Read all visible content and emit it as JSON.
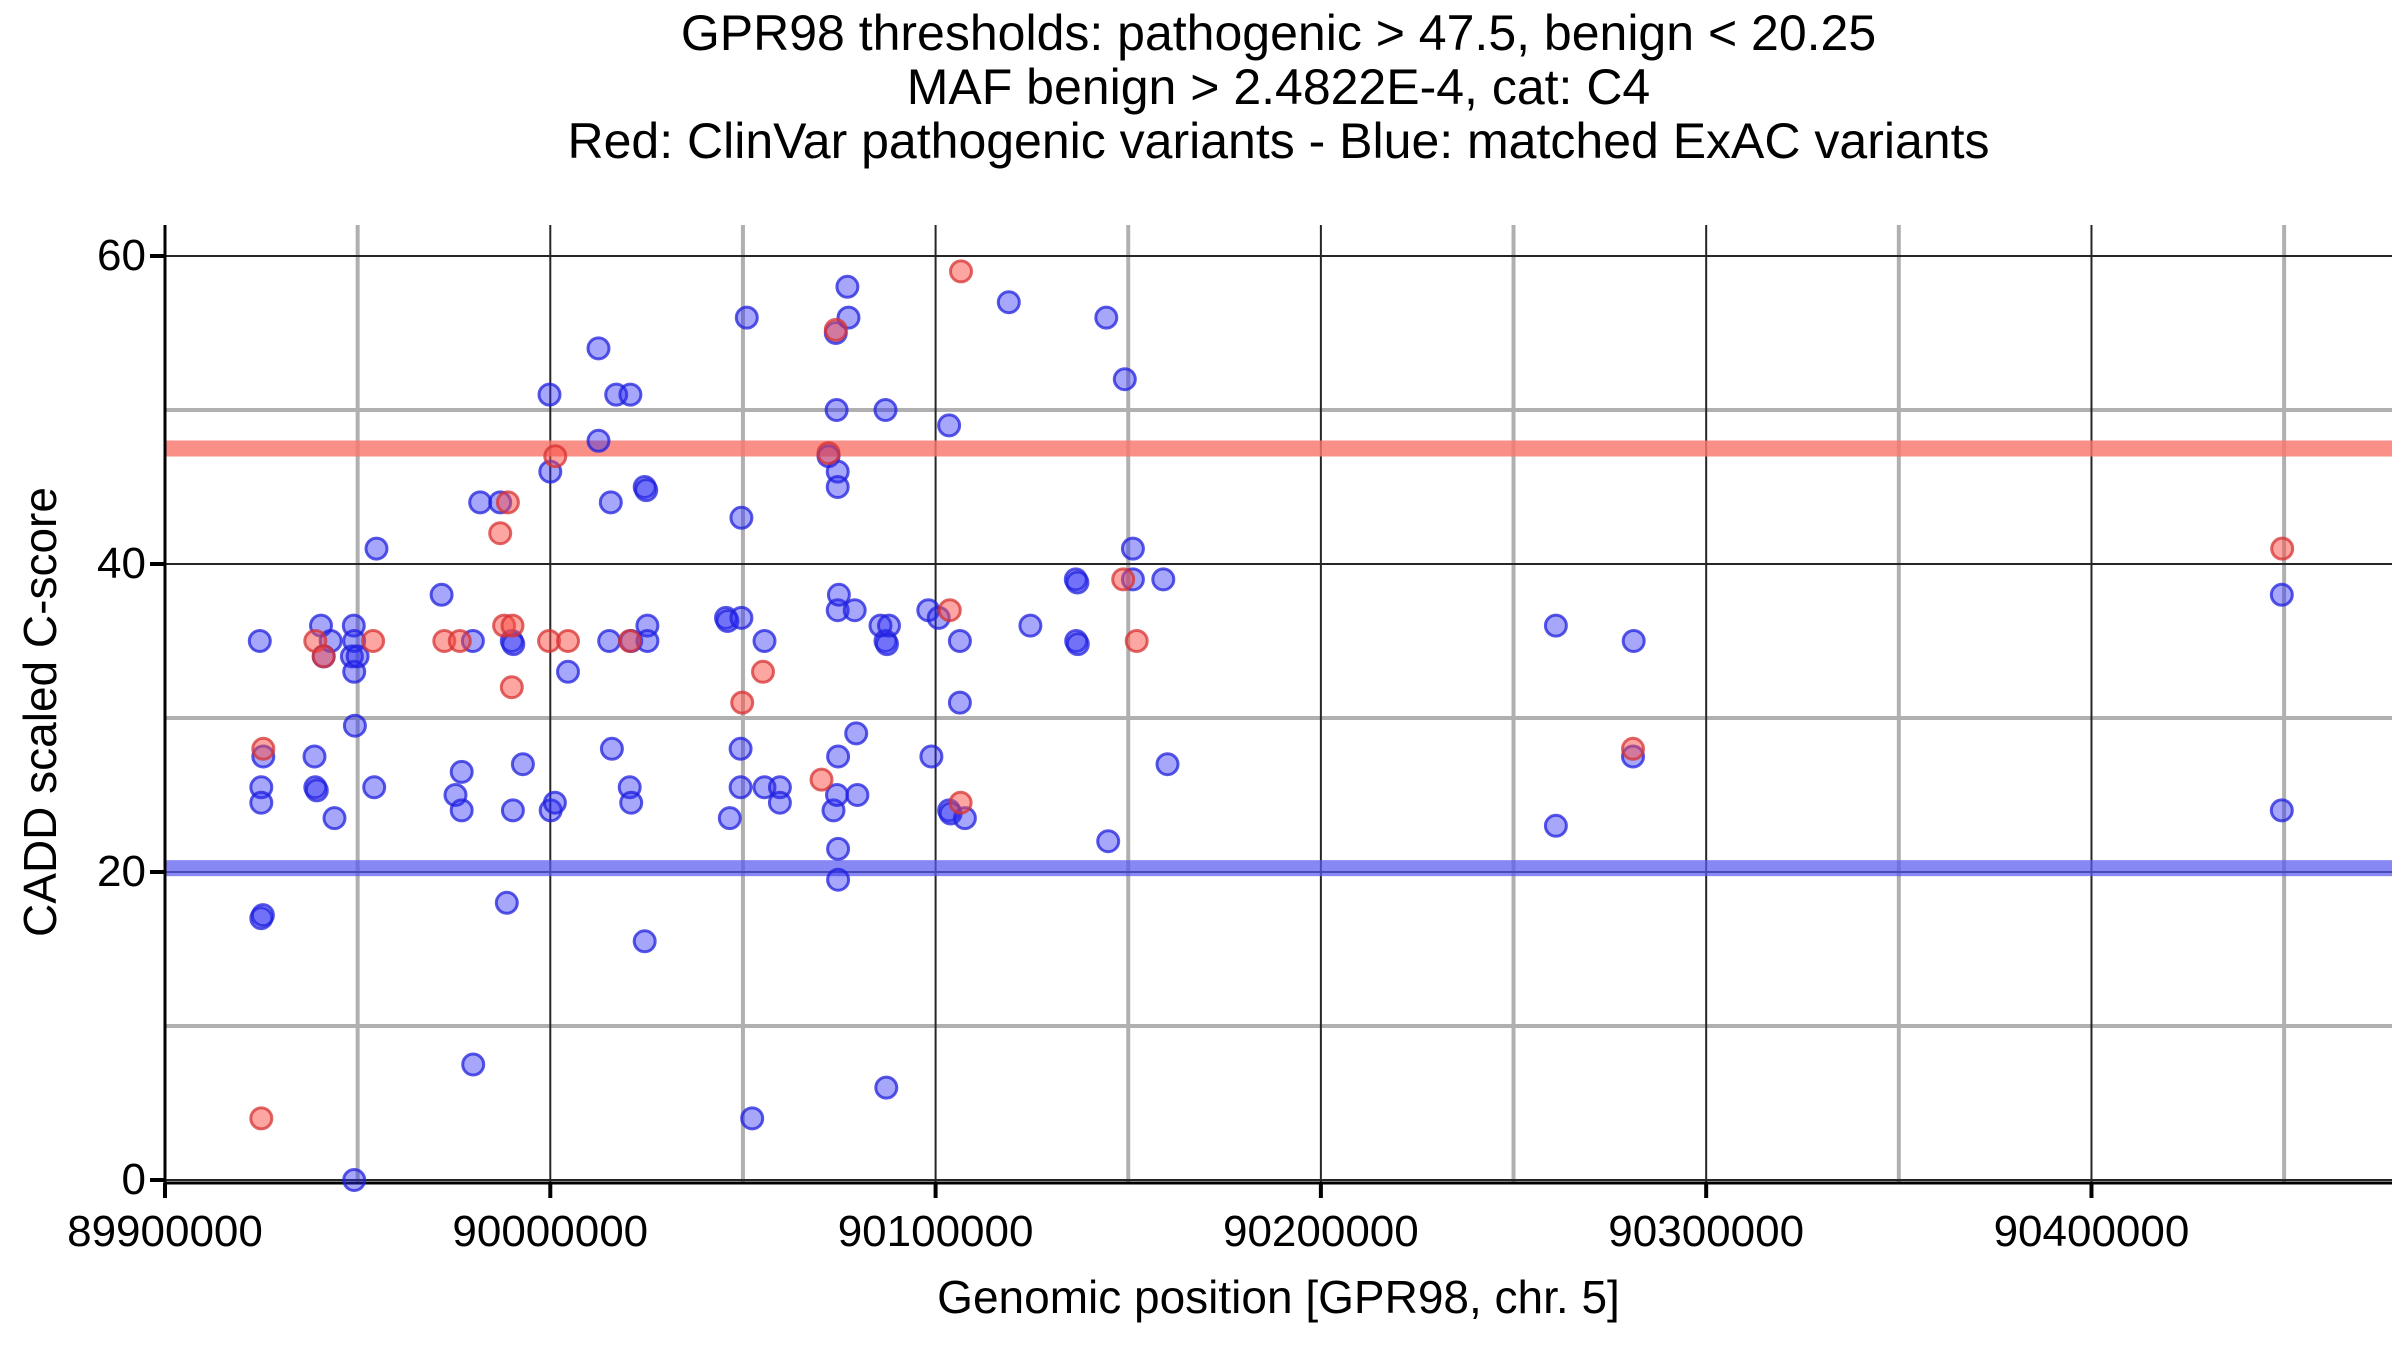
{
  "chart_data": {
    "type": "scatter",
    "title_lines": [
      "GPR98 thresholds: pathogenic > 47.5, benign < 20.25",
      "MAF benign > 2.4822E-4, cat: C4",
      "Red: ClinVar pathogenic variants - Blue: matched ExAC variants"
    ],
    "xlabel": "Genomic position [GPR98, chr. 5]",
    "ylabel": "CADD scaled C-score",
    "x_tick_values": [
      89900000,
      90000000,
      90100000,
      90200000,
      90300000,
      90400000
    ],
    "x_tick_labels": [
      "89900000",
      "90000000",
      "90100000",
      "90200000",
      "90300000",
      "90400000"
    ],
    "y_tick_values": [
      0,
      20,
      40,
      60
    ],
    "y_tick_labels": [
      "0",
      "20",
      "40",
      "60"
    ],
    "x_minor_gridlines": [
      89950000,
      90050000,
      90150000,
      90250000,
      90350000,
      90450000
    ],
    "y_minor_gridlines": [
      10,
      30,
      50
    ],
    "x_range": [
      89900000,
      90478000
    ],
    "y_range": [
      0,
      62
    ],
    "grid": true,
    "legend_position": "none",
    "thresholds": {
      "pathogenic_line": 47.5,
      "benign_line": 20.25,
      "pathogenic_color": "#f8766d",
      "benign_color": "#5a5af0"
    },
    "colors": {
      "red_fill": "#fb4b42",
      "red_stroke": "#d63333",
      "blue_fill": "#2a2af5",
      "blue_stroke": "#2020dd",
      "grid_major": "#262626",
      "grid_minor": "#b0b0b0",
      "axis": "#000000"
    },
    "series": [
      {
        "name": "matched ExAC variants",
        "color": "blue",
        "points": [
          [
            89924600,
            35
          ],
          [
            89925000,
            25.5
          ],
          [
            89925000,
            24.5
          ],
          [
            89925000,
            17
          ],
          [
            89925400,
            17.2
          ],
          [
            89925500,
            27.5
          ],
          [
            89938800,
            27.5
          ],
          [
            89939000,
            25.5
          ],
          [
            89939400,
            25.3
          ],
          [
            89940500,
            36
          ],
          [
            89941200,
            34
          ],
          [
            89943000,
            35
          ],
          [
            89944000,
            23.5
          ],
          [
            89948500,
            34
          ],
          [
            89949000,
            36
          ],
          [
            89949100,
            35
          ],
          [
            89949100,
            33
          ],
          [
            89949100,
            0
          ],
          [
            89949300,
            29.5
          ],
          [
            89950000,
            34
          ],
          [
            89954300,
            25.5
          ],
          [
            89954900,
            41
          ],
          [
            89971800,
            38
          ],
          [
            89975400,
            25
          ],
          [
            89977000,
            26.5
          ],
          [
            89977000,
            24
          ],
          [
            89979900,
            35
          ],
          [
            89980000,
            7.5
          ],
          [
            89981800,
            44
          ],
          [
            89987000,
            44
          ],
          [
            89988700,
            18
          ],
          [
            89990000,
            35
          ],
          [
            89990400,
            34.8
          ],
          [
            89990300,
            24
          ],
          [
            89992900,
            27
          ],
          [
            89999800,
            51
          ],
          [
            90000000,
            46
          ],
          [
            90000100,
            24
          ],
          [
            90001200,
            24.5
          ],
          [
            90004600,
            33
          ],
          [
            90012500,
            54
          ],
          [
            90012500,
            48
          ],
          [
            90015300,
            35
          ],
          [
            90015700,
            44
          ],
          [
            90016000,
            28
          ],
          [
            90017100,
            51
          ],
          [
            90020600,
            25.5
          ],
          [
            90020800,
            51
          ],
          [
            90021000,
            35
          ],
          [
            90021000,
            24.5
          ],
          [
            90024500,
            45
          ],
          [
            90024900,
            44.8
          ],
          [
            90024500,
            15.5
          ],
          [
            90025200,
            36
          ],
          [
            90025200,
            35
          ],
          [
            90045600,
            36.5
          ],
          [
            90046000,
            36.3
          ],
          [
            90046600,
            23.5
          ],
          [
            90049400,
            28
          ],
          [
            90049400,
            25.5
          ],
          [
            90049600,
            43
          ],
          [
            90049600,
            36.5
          ],
          [
            90051000,
            56
          ],
          [
            90052400,
            4
          ],
          [
            90055600,
            35
          ],
          [
            90055600,
            25.5
          ],
          [
            90059600,
            25.5
          ],
          [
            90059600,
            24.5
          ],
          [
            90072200,
            47
          ],
          [
            90073500,
            24
          ],
          [
            90074100,
            55
          ],
          [
            90074300,
            50
          ],
          [
            90074400,
            25
          ],
          [
            90074600,
            46
          ],
          [
            90074600,
            45
          ],
          [
            90074600,
            37
          ],
          [
            90074700,
            27.5
          ],
          [
            90074700,
            21.5
          ],
          [
            90074700,
            19.5
          ],
          [
            90074900,
            38
          ],
          [
            90077100,
            58
          ],
          [
            90077400,
            56
          ],
          [
            90079000,
            37
          ],
          [
            90079400,
            29
          ],
          [
            90079700,
            25
          ],
          [
            90085700,
            36
          ],
          [
            90087000,
            50
          ],
          [
            90087000,
            35
          ],
          [
            90087200,
            6
          ],
          [
            90087400,
            34.8
          ],
          [
            90087900,
            36
          ],
          [
            90098100,
            37
          ],
          [
            90098900,
            27.5
          ],
          [
            90100800,
            36.5
          ],
          [
            90103500,
            49
          ],
          [
            90103500,
            24
          ],
          [
            90103900,
            23.8
          ],
          [
            90106300,
            35
          ],
          [
            90106300,
            31
          ],
          [
            90107600,
            23.5
          ],
          [
            90119000,
            57
          ],
          [
            90124600,
            36
          ],
          [
            90136400,
            39
          ],
          [
            90136500,
            35
          ],
          [
            90136800,
            38.8
          ],
          [
            90136900,
            34.8
          ],
          [
            90144300,
            56
          ],
          [
            90144800,
            22
          ],
          [
            90149100,
            52
          ],
          [
            90151200,
            41
          ],
          [
            90151200,
            39
          ],
          [
            90159100,
            39
          ],
          [
            90160200,
            27
          ],
          [
            90261000,
            36
          ],
          [
            90261000,
            23
          ],
          [
            90281000,
            27.5
          ],
          [
            90281200,
            35
          ],
          [
            90449400,
            38
          ],
          [
            90449400,
            24
          ]
        ]
      },
      {
        "name": "ClinVar pathogenic variants",
        "color": "red",
        "points": [
          [
            89925000,
            4
          ],
          [
            89925500,
            28
          ],
          [
            89939000,
            35
          ],
          [
            89941200,
            34
          ],
          [
            89954000,
            35
          ],
          [
            89972500,
            35
          ],
          [
            89976500,
            35
          ],
          [
            89987000,
            42
          ],
          [
            89988000,
            36
          ],
          [
            89989000,
            44
          ],
          [
            89990200,
            36
          ],
          [
            89990000,
            32
          ],
          [
            89999700,
            35
          ],
          [
            90001300,
            47
          ],
          [
            90004600,
            35
          ],
          [
            90020700,
            35
          ],
          [
            90049800,
            31
          ],
          [
            90055200,
            33
          ],
          [
            90070400,
            26
          ],
          [
            90072200,
            47.2
          ],
          [
            90074100,
            55.2
          ],
          [
            90103700,
            37
          ],
          [
            90106500,
            24.5
          ],
          [
            90106600,
            59
          ],
          [
            90148700,
            39
          ],
          [
            90152200,
            35
          ],
          [
            90281000,
            28
          ],
          [
            90449500,
            41
          ]
        ]
      }
    ]
  }
}
